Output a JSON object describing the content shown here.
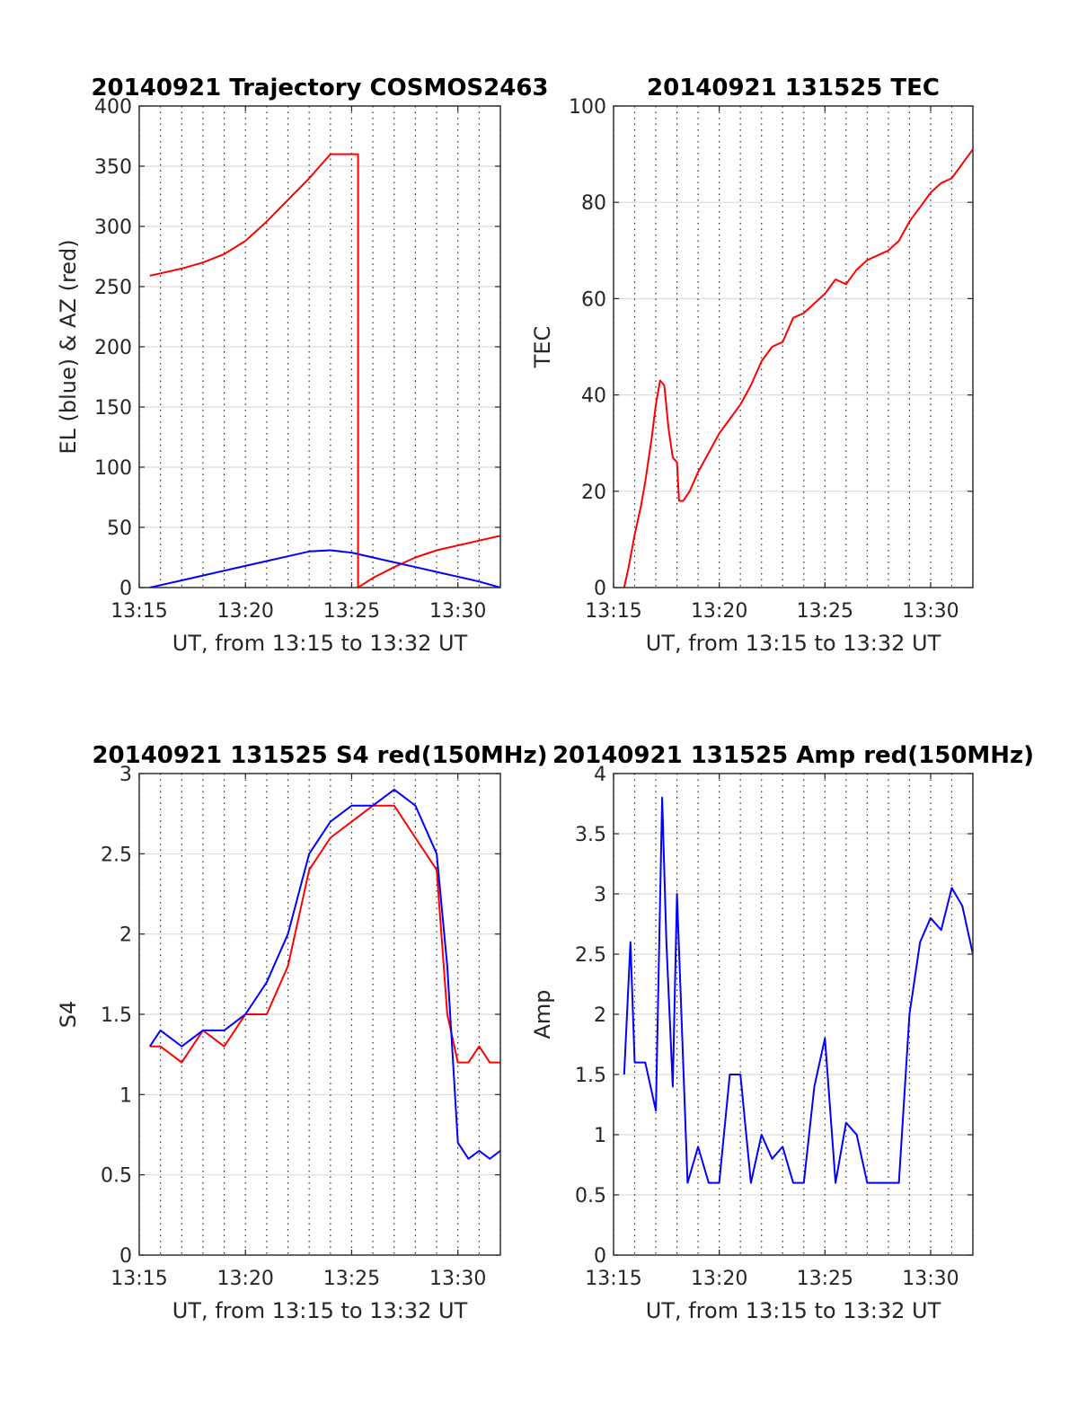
{
  "chart_data": [
    {
      "id": "trajectory",
      "type": "line",
      "title": "20140921 Trajectory COSMOS2463",
      "xlabel": "UT, from 13:15 to 13:32 UT",
      "ylabel": "EL (blue) & AZ (red)",
      "xlim": [
        0,
        17
      ],
      "ylim": [
        0,
        400
      ],
      "x_ticks": [
        {
          "value": 0,
          "label": "13:15"
        },
        {
          "value": 5,
          "label": "13:20"
        },
        {
          "value": 10,
          "label": "13:25"
        },
        {
          "value": 15,
          "label": "13:30"
        }
      ],
      "y_ticks": [
        {
          "value": 0,
          "label": "0"
        },
        {
          "value": 50,
          "label": "50"
        },
        {
          "value": 100,
          "label": "100"
        },
        {
          "value": 150,
          "label": "150"
        },
        {
          "value": 200,
          "label": "200"
        },
        {
          "value": 250,
          "label": "250"
        },
        {
          "value": 300,
          "label": "300"
        },
        {
          "value": 350,
          "label": "350"
        },
        {
          "value": 400,
          "label": "400"
        }
      ],
      "grid": "dotted vertical every minute, horizontal at y ticks",
      "series": [
        {
          "color": "#ff0000",
          "x": [
            0.5,
            1,
            2,
            3,
            4,
            5,
            6,
            7,
            8,
            9,
            10,
            10.3,
            10.3,
            10.3,
            11,
            12,
            13,
            14,
            15,
            16,
            17
          ],
          "y": [
            259,
            261,
            265,
            270,
            277,
            288,
            304,
            322,
            340,
            360,
            360,
            360,
            180,
            0,
            8,
            17,
            25,
            31,
            35,
            39,
            43
          ]
        },
        {
          "color": "#0000ff",
          "x": [
            0.5,
            1,
            2,
            3,
            4,
            5,
            6,
            7,
            8,
            9,
            10,
            11,
            12,
            13,
            14,
            15,
            16,
            17
          ],
          "y": [
            0,
            2,
            6,
            10,
            14,
            18,
            22,
            26,
            30,
            31,
            29,
            25,
            21,
            17,
            13,
            9,
            5,
            0
          ]
        }
      ]
    },
    {
      "id": "tec",
      "type": "line",
      "title": "20140921 131525 TEC",
      "xlabel": "UT, from 13:15 to 13:32 UT",
      "ylabel": "TEC",
      "xlim": [
        0,
        17
      ],
      "ylim": [
        0,
        100
      ],
      "x_ticks": [
        {
          "value": 0,
          "label": "13:15"
        },
        {
          "value": 5,
          "label": "13:20"
        },
        {
          "value": 10,
          "label": "13:25"
        },
        {
          "value": 15,
          "label": "13:30"
        }
      ],
      "y_ticks": [
        {
          "value": 0,
          "label": "0"
        },
        {
          "value": 20,
          "label": "20"
        },
        {
          "value": 40,
          "label": "40"
        },
        {
          "value": 60,
          "label": "60"
        },
        {
          "value": 80,
          "label": "80"
        },
        {
          "value": 100,
          "label": "100"
        }
      ],
      "grid": "dotted vertical every minute, horizontal at y ticks",
      "series": [
        {
          "color": "#ff0000",
          "x": [
            0.5,
            0.7,
            1.0,
            1.3,
            1.5,
            1.8,
            2.0,
            2.2,
            2.4,
            2.6,
            2.8,
            3.0,
            3.1,
            3.3,
            3.6,
            4,
            4.5,
            5,
            5.5,
            6,
            6.5,
            7,
            7.5,
            8,
            8.5,
            9,
            9.5,
            10,
            10.5,
            11,
            11.5,
            12,
            12.5,
            13,
            13.5,
            14,
            14.5,
            15,
            15.5,
            16,
            16.5,
            17
          ],
          "y": [
            0,
            4,
            11,
            17,
            22,
            31,
            38,
            43,
            42,
            33,
            27,
            26,
            18,
            18,
            20,
            24,
            28,
            32,
            35,
            38,
            42,
            47,
            50,
            51,
            56,
            57,
            59,
            61,
            64,
            63,
            66,
            68,
            69,
            70,
            72,
            76,
            79,
            82,
            84,
            85,
            88,
            91
          ]
        }
      ]
    },
    {
      "id": "s4",
      "type": "line",
      "title": "20140921 131525 S4 red(150MHz)",
      "xlabel": "UT, from 13:15 to 13:32 UT",
      "ylabel": "S4",
      "xlim": [
        0,
        17
      ],
      "ylim": [
        0,
        3
      ],
      "x_ticks": [
        {
          "value": 0,
          "label": "13:15"
        },
        {
          "value": 5,
          "label": "13:20"
        },
        {
          "value": 10,
          "label": "13:25"
        },
        {
          "value": 15,
          "label": "13:30"
        }
      ],
      "y_ticks": [
        {
          "value": 0,
          "label": "0"
        },
        {
          "value": 0.5,
          "label": "0.5"
        },
        {
          "value": 1,
          "label": "1"
        },
        {
          "value": 1.5,
          "label": "1.5"
        },
        {
          "value": 2,
          "label": "2"
        },
        {
          "value": 2.5,
          "label": "2.5"
        },
        {
          "value": 3,
          "label": "3"
        }
      ],
      "grid": "dotted vertical every minute, horizontal at y ticks",
      "series": [
        {
          "color": "#ff0000",
          "x": [
            0.5,
            1,
            2,
            3,
            4,
            5,
            6,
            7,
            8,
            9,
            10,
            11,
            12,
            13,
            14,
            14.5,
            15,
            15.5,
            16,
            16.5,
            17
          ],
          "y": [
            1.3,
            1.3,
            1.2,
            1.4,
            1.3,
            1.5,
            1.5,
            1.8,
            2.4,
            2.6,
            2.7,
            2.8,
            2.8,
            2.6,
            2.4,
            1.5,
            1.2,
            1.2,
            1.3,
            1.2,
            1.2
          ]
        },
        {
          "color": "#0000ff",
          "x": [
            0.5,
            1,
            2,
            3,
            4,
            5,
            6,
            7,
            8,
            9,
            10,
            11,
            12,
            13,
            14,
            14.5,
            15,
            15.5,
            16,
            16.5,
            17
          ],
          "y": [
            1.3,
            1.4,
            1.3,
            1.4,
            1.4,
            1.5,
            1.7,
            2.0,
            2.5,
            2.7,
            2.8,
            2.8,
            2.9,
            2.8,
            2.5,
            1.8,
            0.7,
            0.6,
            0.65,
            0.6,
            0.65
          ]
        }
      ]
    },
    {
      "id": "amp",
      "type": "line",
      "title": "20140921 131525 Amp red(150MHz)",
      "xlabel": "UT, from 13:15 to 13:32 UT",
      "ylabel": "Amp",
      "xlim": [
        0,
        17
      ],
      "ylim": [
        0,
        4
      ],
      "x_ticks": [
        {
          "value": 0,
          "label": "13:15"
        },
        {
          "value": 5,
          "label": "13:20"
        },
        {
          "value": 10,
          "label": "13:25"
        },
        {
          "value": 15,
          "label": "13:30"
        }
      ],
      "y_ticks": [
        {
          "value": 0,
          "label": "0"
        },
        {
          "value": 0.5,
          "label": "0.5"
        },
        {
          "value": 1,
          "label": "1"
        },
        {
          "value": 1.5,
          "label": "1.5"
        },
        {
          "value": 2,
          "label": "2"
        },
        {
          "value": 2.5,
          "label": "2.5"
        },
        {
          "value": 3,
          "label": "3"
        },
        {
          "value": 3.5,
          "label": "3.5"
        },
        {
          "value": 4,
          "label": "4"
        }
      ],
      "grid": "dotted vertical every minute, horizontal at y ticks",
      "series": [
        {
          "color": "#0000ff",
          "x": [
            0.5,
            0.8,
            1.0,
            1.5,
            2.0,
            2.3,
            2.5,
            2.8,
            3.0,
            3.5,
            4.0,
            4.5,
            5.0,
            5.5,
            6.0,
            6.5,
            7.0,
            7.5,
            8.0,
            8.5,
            9.0,
            9.5,
            10.0,
            10.5,
            11.0,
            11.5,
            12.0,
            12.5,
            13.0,
            13.5,
            14.0,
            14.5,
            15.0,
            15.5,
            16.0,
            16.5,
            17.0
          ],
          "y": [
            1.5,
            2.6,
            1.6,
            1.6,
            1.2,
            3.8,
            2.6,
            1.4,
            3.0,
            0.6,
            0.9,
            0.6,
            0.6,
            1.5,
            1.5,
            0.6,
            1.0,
            0.8,
            0.9,
            0.6,
            0.6,
            1.4,
            1.8,
            0.6,
            1.1,
            1.0,
            0.6,
            0.6,
            0.6,
            0.6,
            2.0,
            2.6,
            2.8,
            2.7,
            3.05,
            2.9,
            2.5
          ]
        }
      ]
    }
  ]
}
